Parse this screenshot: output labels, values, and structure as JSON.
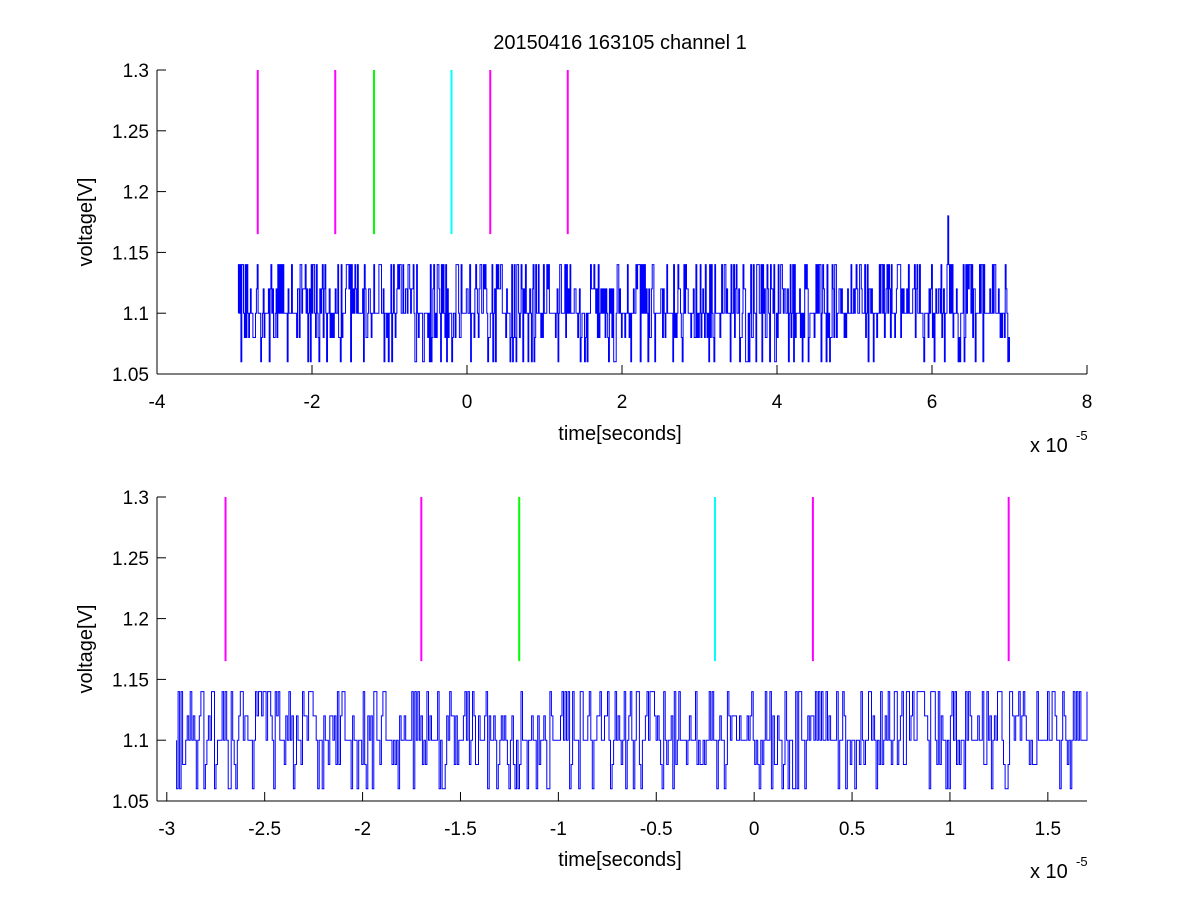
{
  "chart_data": [
    {
      "type": "line",
      "title": "20150416 163105 channel 1",
      "xlabel": "time[seconds]",
      "ylabel": "voltage[V]",
      "x_multiplier_label": "x 10",
      "x_multiplier_exp": "-5",
      "xlim": [
        -4,
        8
      ],
      "ylim": [
        1.05,
        1.3
      ],
      "x_ticks": [
        -4,
        -2,
        0,
        2,
        4,
        6,
        8
      ],
      "x_tick_labels": [
        "-4",
        "-2",
        "0",
        "2",
        "4",
        "6",
        "8"
      ],
      "y_ticks": [
        1.05,
        1.1,
        1.15,
        1.2,
        1.25,
        1.3
      ],
      "y_tick_labels": [
        "1.05",
        "1.1",
        "1.15",
        "1.2",
        "1.25",
        "1.3"
      ],
      "grid": false,
      "signal": {
        "color": "#0000ff",
        "x_range": [
          -2.95,
          7.0
        ],
        "levels": [
          1.06,
          1.08,
          1.1,
          1.12,
          1.14
        ],
        "peak": {
          "x": 6.2,
          "y": 1.18
        }
      },
      "markers": [
        {
          "x": -2.7,
          "y_range": [
            1.165,
            1.3
          ],
          "color": "#ff00ff"
        },
        {
          "x": -1.7,
          "y_range": [
            1.165,
            1.3
          ],
          "color": "#ff00ff"
        },
        {
          "x": -1.2,
          "y_range": [
            1.165,
            1.3
          ],
          "color": "#00ff00"
        },
        {
          "x": -0.2,
          "y_range": [
            1.165,
            1.3
          ],
          "color": "#00ffff"
        },
        {
          "x": 0.3,
          "y_range": [
            1.165,
            1.3
          ],
          "color": "#ff00ff"
        },
        {
          "x": 1.3,
          "y_range": [
            1.165,
            1.3
          ],
          "color": "#ff00ff"
        }
      ]
    },
    {
      "type": "line",
      "title": "",
      "xlabel": "time[seconds]",
      "ylabel": "voltage[V]",
      "x_multiplier_label": "x 10",
      "x_multiplier_exp": "-5",
      "xlim": [
        -3.05,
        1.7
      ],
      "ylim": [
        1.05,
        1.3
      ],
      "x_ticks": [
        -3,
        -2.5,
        -2,
        -1.5,
        -1,
        -0.5,
        0,
        0.5,
        1,
        1.5
      ],
      "x_tick_labels": [
        "-3",
        "-2.5",
        "-2",
        "-1.5",
        "-1",
        "-0.5",
        "0",
        "0.5",
        "1",
        "1.5"
      ],
      "y_ticks": [
        1.05,
        1.1,
        1.15,
        1.2,
        1.25,
        1.3
      ],
      "y_tick_labels": [
        "1.05",
        "1.1",
        "1.15",
        "1.2",
        "1.25",
        "1.3"
      ],
      "grid": false,
      "signal": {
        "color": "#0000ff",
        "x_range": [
          -2.95,
          1.7
        ],
        "levels": [
          1.06,
          1.08,
          1.1,
          1.12,
          1.14
        ]
      },
      "markers": [
        {
          "x": -2.7,
          "y_range": [
            1.165,
            1.3
          ],
          "color": "#ff00ff"
        },
        {
          "x": -1.7,
          "y_range": [
            1.165,
            1.3
          ],
          "color": "#ff00ff"
        },
        {
          "x": -1.2,
          "y_range": [
            1.165,
            1.3
          ],
          "color": "#00ff00"
        },
        {
          "x": -0.2,
          "y_range": [
            1.165,
            1.3
          ],
          "color": "#00ffff"
        },
        {
          "x": 0.3,
          "y_range": [
            1.165,
            1.3
          ],
          "color": "#ff00ff"
        },
        {
          "x": 1.3,
          "y_range": [
            1.165,
            1.3
          ],
          "color": "#ff00ff"
        }
      ]
    }
  ]
}
